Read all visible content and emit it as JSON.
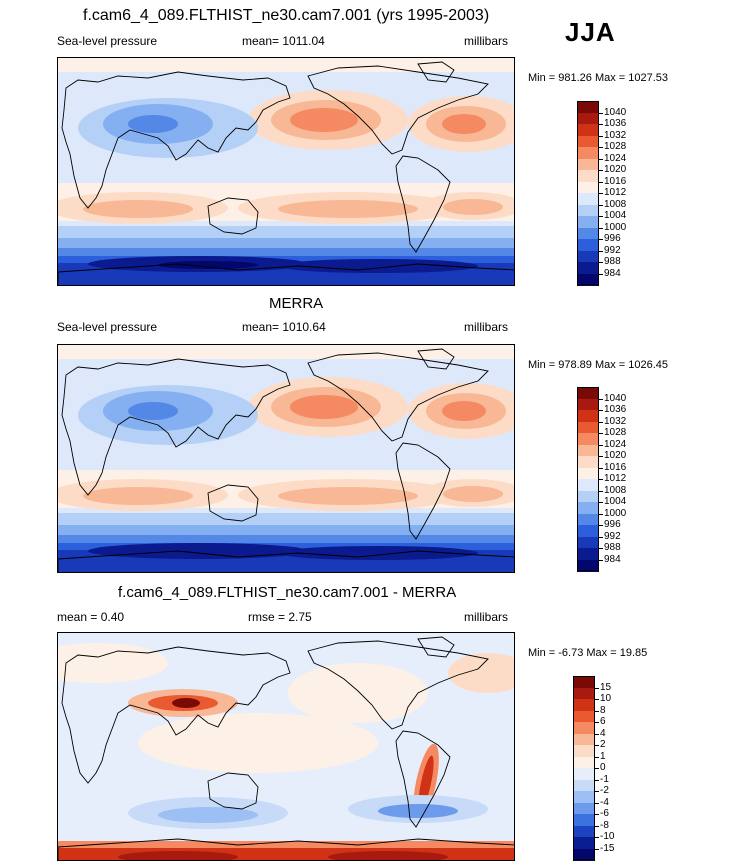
{
  "header": {
    "model_title": "f.cam6_4_089.FLTHIST_ne30.cam7.001 (yrs 1995-2003)",
    "season": "JJA"
  },
  "panels": [
    {
      "id": "model",
      "title": "f.cam6_4_089.FLTHIST_ne30.cam7.001 (yrs 1995-2003)",
      "left_label": "Sea-level pressure",
      "center_label": "mean= 1011.04",
      "right_label": "millibars",
      "minmax": "Min = 981.26 Max = 1027.53",
      "colorbar_labels": [
        "1040",
        "1036",
        "1032",
        "1028",
        "1024",
        "1020",
        "1016",
        "1012",
        "1008",
        "1004",
        "1000",
        "996",
        "992",
        "988",
        "984"
      ]
    },
    {
      "id": "obs",
      "title": "MERRA",
      "left_label": "Sea-level pressure",
      "center_label": "mean= 1010.64",
      "right_label": "millibars",
      "minmax": "Min = 978.89 Max = 1026.45",
      "colorbar_labels": [
        "1040",
        "1036",
        "1032",
        "1028",
        "1024",
        "1020",
        "1016",
        "1012",
        "1008",
        "1004",
        "1000",
        "996",
        "992",
        "988",
        "984"
      ]
    },
    {
      "id": "diff",
      "title": "f.cam6_4_089.FLTHIST_ne30.cam7.001 - MERRA",
      "left_label": "mean =   0.40",
      "center_label": "rmse =   2.75",
      "right_label": "millibars",
      "minmax": "Min =  -6.73 Max =  19.85",
      "colorbar_labels": [
        "15",
        "10",
        "8",
        "6",
        "4",
        "2",
        "1",
        "0",
        "-1",
        "-2",
        "-4",
        "-6",
        "-8",
        "-10",
        "-15"
      ]
    }
  ],
  "colors": {
    "abs_scale": [
      "#7a0a05",
      "#a81a10",
      "#cf3214",
      "#ea5a30",
      "#f58a62",
      "#f9b895",
      "#fcdcc6",
      "#fdf0e6",
      "#dde9fb",
      "#b5d0f7",
      "#84aff0",
      "#5388e6",
      "#2c5fdb",
      "#1839b8",
      "#0b1a8e",
      "#03066a"
    ],
    "diff_scale": [
      "#7a0a05",
      "#a81a10",
      "#cf3214",
      "#ea5a30",
      "#f58a62",
      "#f9b895",
      "#fcdcc6",
      "#fdf0e6",
      "#e6eefc",
      "#c7dbf8",
      "#9cc0f3",
      "#6d9bec",
      "#3e71e0",
      "#1c44c0",
      "#0b1d92",
      "#03066a"
    ]
  }
}
